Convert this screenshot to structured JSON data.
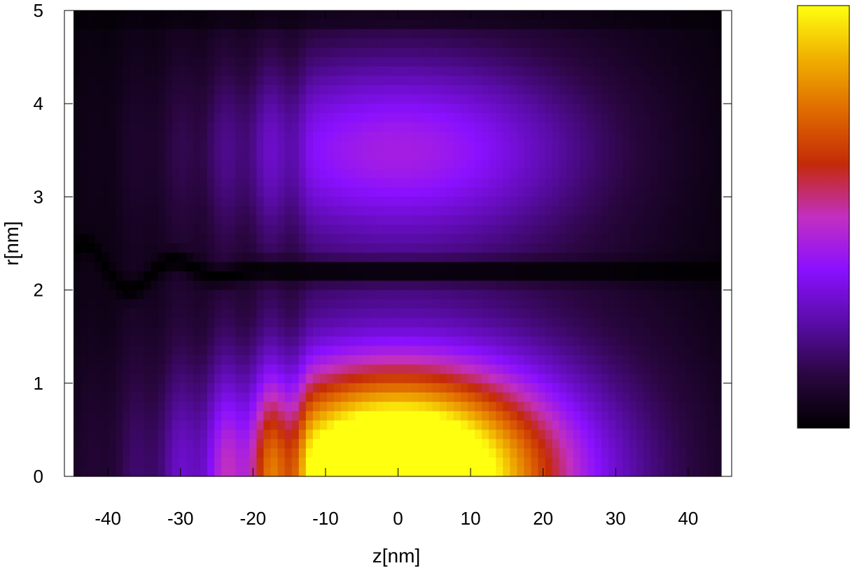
{
  "chart_data": {
    "type": "heatmap",
    "title": "",
    "xlabel": "z[nm]",
    "ylabel": "r[nm]",
    "xlim": [
      -46,
      46
    ],
    "ylim": [
      0,
      5
    ],
    "x_ticks": [
      -40,
      -30,
      -20,
      -10,
      0,
      10,
      20,
      30,
      40
    ],
    "y_ticks": [
      0,
      1,
      2,
      3,
      4,
      5
    ],
    "grid": false,
    "colorbar": {
      "placement": "right",
      "tick_labels": [],
      "colormap": [
        "#000000",
        "#2a0640",
        "#5a0ca8",
        "#8a10ff",
        "#c22fc0",
        "#c42a08",
        "#e06a00",
        "#f0b000",
        "#ffff10"
      ]
    },
    "features": {
      "main_lobe": {
        "z_center": 0,
        "r_center": 0,
        "peak_level": 1.0,
        "z_halfwidth_nm": 13,
        "r_extent_nm": 1.6
      },
      "outer_lobe": {
        "z_center": 0,
        "r_center": 3.5,
        "peak_level": 0.38
      },
      "node_line_r_nm": 2.2,
      "node_line_oscillation_z_range": [
        -46,
        -15
      ]
    }
  }
}
